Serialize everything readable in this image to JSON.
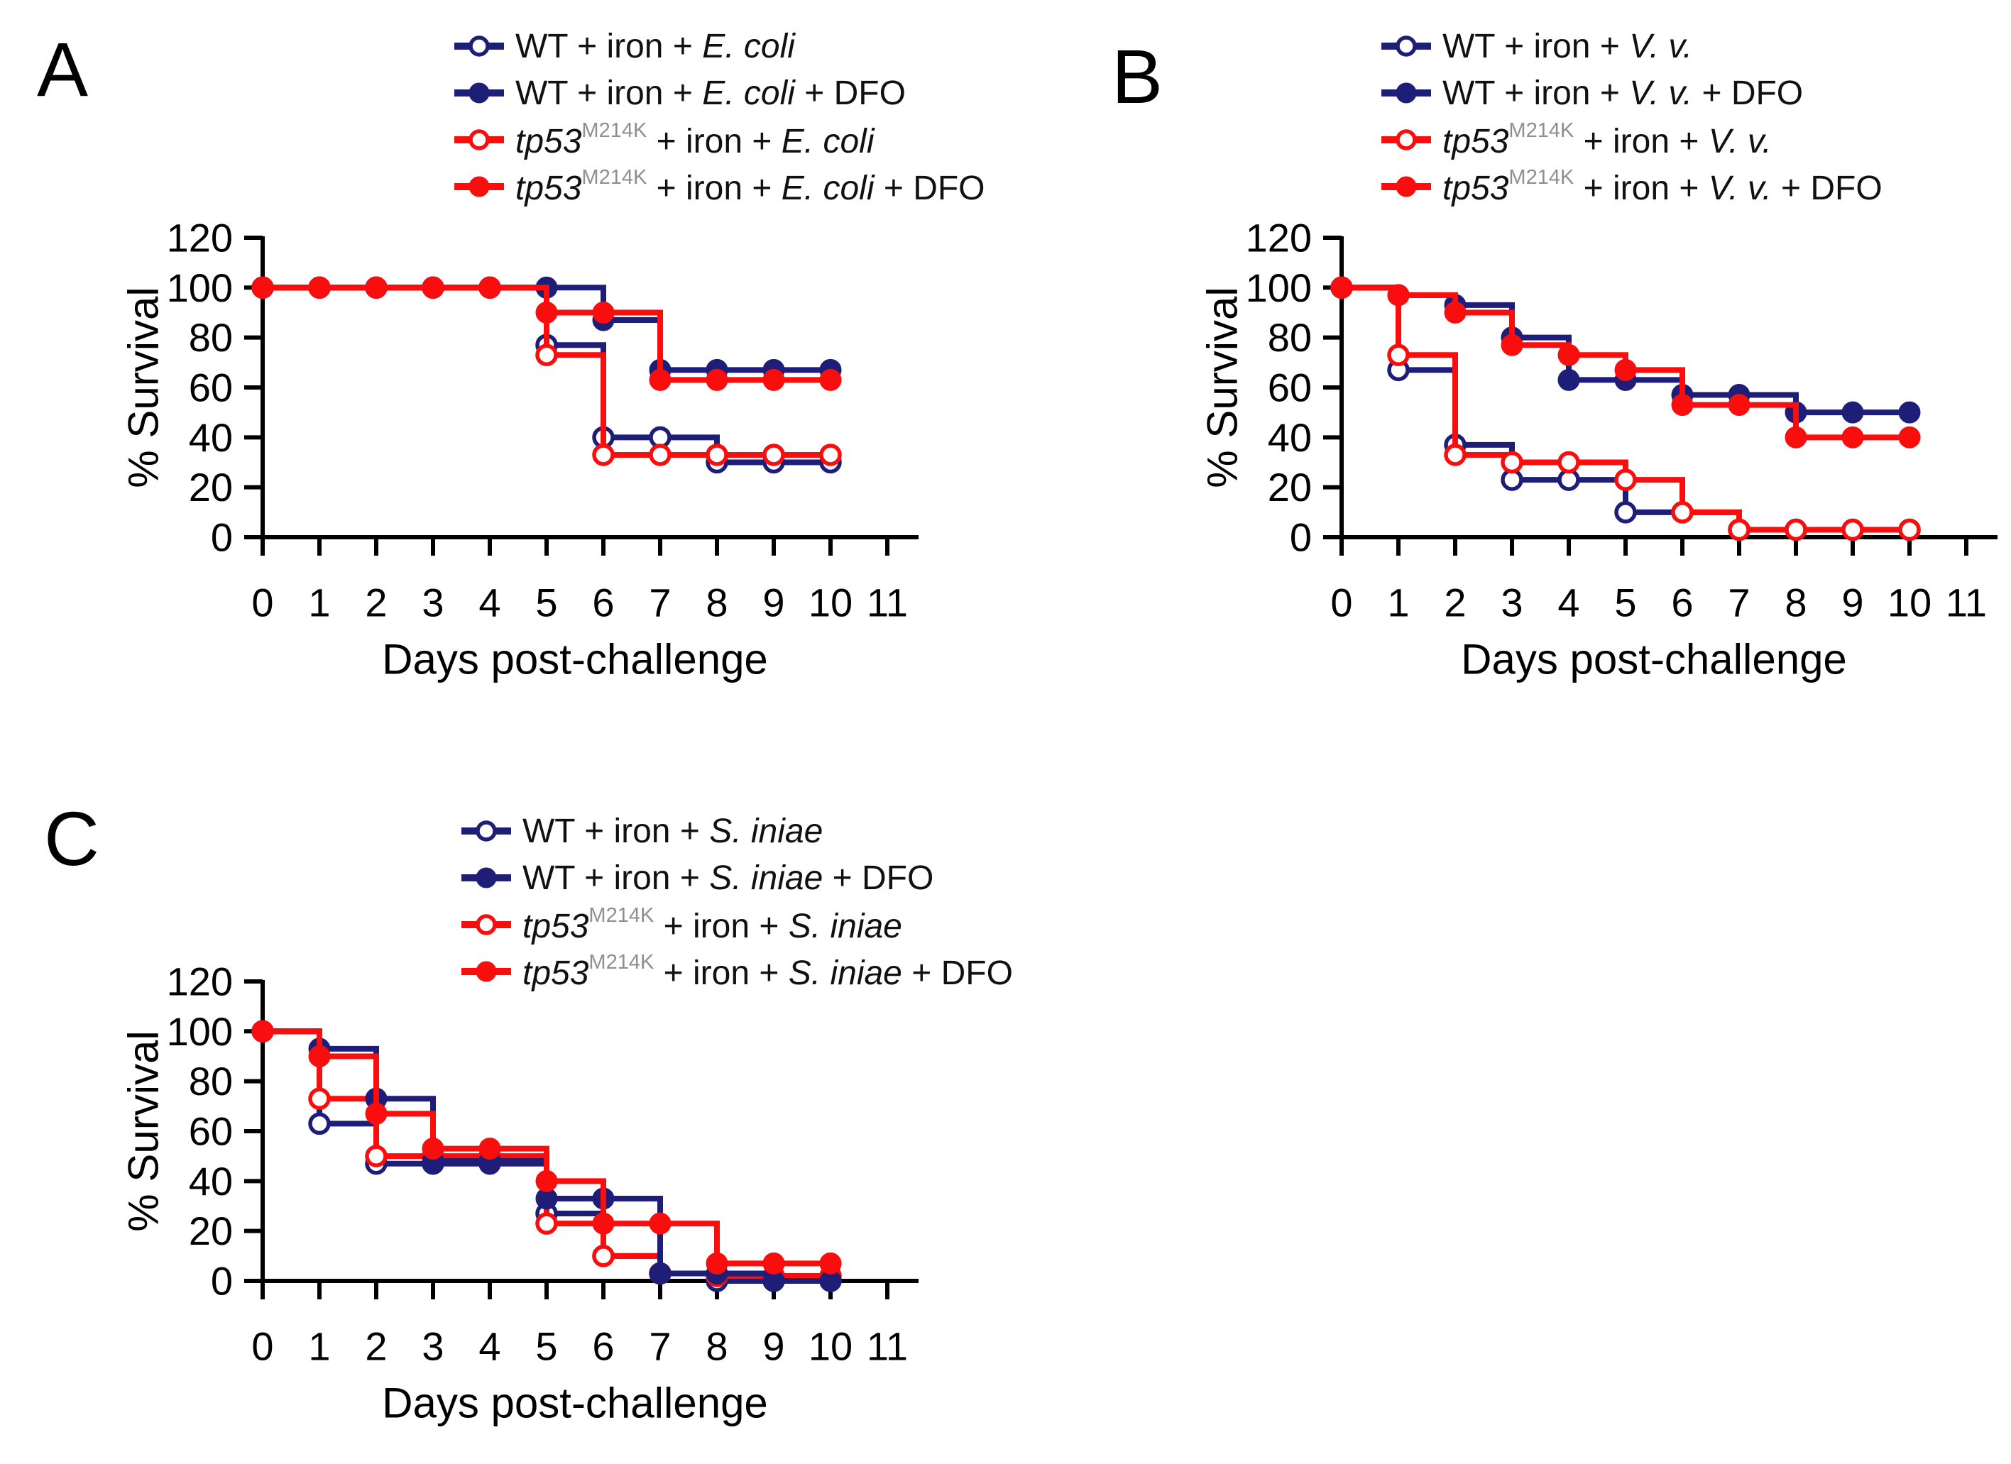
{
  "figure": {
    "background": "#ffffff",
    "panel_labels": [
      "A",
      "B",
      "C"
    ],
    "x_axis_title": "Days post-challenge",
    "y_axis_title": "% Survival"
  },
  "colors": {
    "navy": "#1e1e78",
    "red": "#f90d0d",
    "axis": "#000000",
    "superscript_gray": "#8f8f8f",
    "marker_open_fill": "#ffffff"
  },
  "chart_data": [
    {
      "type": "line",
      "subtype": "kaplan-meier-step",
      "panel_label": "A",
      "pathogen": "E. coli",
      "xlabel": "Days post-challenge",
      "ylabel": "% Survival",
      "xlim": [
        0,
        11.5
      ],
      "ylim": [
        0,
        120
      ],
      "x_ticks": [
        0,
        1,
        2,
        3,
        4,
        5,
        6,
        7,
        8,
        9,
        10,
        11
      ],
      "y_ticks": [
        0,
        20,
        40,
        60,
        80,
        100,
        120
      ],
      "days": [
        0,
        1,
        2,
        3,
        4,
        5,
        6,
        7,
        8,
        9,
        10
      ],
      "series": [
        {
          "name": "WT + iron + E. coli",
          "label_parts": [
            {
              "text": "WT + iron + "
            },
            {
              "text": "E. coli",
              "italic": true
            }
          ],
          "color_key": "navy",
          "marker": "open",
          "values": [
            100,
            100,
            100,
            100,
            100,
            77,
            40,
            40,
            30,
            30,
            30
          ]
        },
        {
          "name": "WT + iron + E. coli + DFO",
          "label_parts": [
            {
              "text": "WT + iron + "
            },
            {
              "text": "E. coli",
              "italic": true
            },
            {
              "text": " + DFO"
            }
          ],
          "color_key": "navy",
          "marker": "filled",
          "values": [
            100,
            100,
            100,
            100,
            100,
            100,
            87,
            67,
            67,
            67,
            67
          ]
        },
        {
          "name": "tp53M214K + iron + E. coli",
          "label_parts": [
            {
              "text": "tp53",
              "italic": true
            },
            {
              "text": "M214K",
              "sup": true
            },
            {
              "text": " + iron + "
            },
            {
              "text": "E. coli",
              "italic": true
            }
          ],
          "color_key": "red",
          "marker": "open",
          "values": [
            100,
            100,
            100,
            100,
            100,
            73,
            33,
            33,
            33,
            33,
            33
          ]
        },
        {
          "name": "tp53M214K + iron + E. coli + DFO",
          "label_parts": [
            {
              "text": "tp53",
              "italic": true
            },
            {
              "text": "M214K",
              "sup": true
            },
            {
              "text": " + iron + "
            },
            {
              "text": "E. coli",
              "italic": true
            },
            {
              "text": " + DFO"
            }
          ],
          "color_key": "red",
          "marker": "filled",
          "values": [
            100,
            100,
            100,
            100,
            100,
            90,
            90,
            63,
            63,
            63,
            63
          ]
        }
      ]
    },
    {
      "type": "line",
      "subtype": "kaplan-meier-step",
      "panel_label": "B",
      "pathogen": "V. v.",
      "xlabel": "Days post-challenge",
      "ylabel": "% Survival",
      "xlim": [
        0,
        11.5
      ],
      "ylim": [
        0,
        120
      ],
      "x_ticks": [
        0,
        1,
        2,
        3,
        4,
        5,
        6,
        7,
        8,
        9,
        10,
        11
      ],
      "y_ticks": [
        0,
        20,
        40,
        60,
        80,
        100,
        120
      ],
      "days": [
        0,
        1,
        2,
        3,
        4,
        5,
        6,
        7,
        8,
        9,
        10
      ],
      "series": [
        {
          "name": "WT + iron + V. v.",
          "label_parts": [
            {
              "text": "WT + iron + "
            },
            {
              "text": "V. v.",
              "italic": true
            }
          ],
          "color_key": "navy",
          "marker": "open",
          "values": [
            100,
            67,
            37,
            23,
            23,
            10,
            10,
            3,
            3,
            3,
            3
          ]
        },
        {
          "name": "WT + iron + V. v. + DFO",
          "label_parts": [
            {
              "text": "WT + iron + "
            },
            {
              "text": "V. v.",
              "italic": true
            },
            {
              "text": " + DFO"
            }
          ],
          "color_key": "navy",
          "marker": "filled",
          "values": [
            100,
            97,
            93,
            80,
            63,
            63,
            57,
            57,
            50,
            50,
            50
          ]
        },
        {
          "name": "tp53M214K + iron + V. v.",
          "label_parts": [
            {
              "text": "tp53",
              "italic": true
            },
            {
              "text": "M214K",
              "sup": true
            },
            {
              "text": " + iron + "
            },
            {
              "text": "V. v.",
              "italic": true
            }
          ],
          "color_key": "red",
          "marker": "open",
          "values": [
            100,
            73,
            33,
            30,
            30,
            23,
            10,
            3,
            3,
            3,
            3
          ]
        },
        {
          "name": "tp53M214K + iron + V. v. + DFO",
          "label_parts": [
            {
              "text": "tp53",
              "italic": true
            },
            {
              "text": "M214K",
              "sup": true
            },
            {
              "text": " + iron + "
            },
            {
              "text": "V. v.",
              "italic": true
            },
            {
              "text": " + DFO"
            }
          ],
          "color_key": "red",
          "marker": "filled",
          "values": [
            100,
            97,
            90,
            77,
            73,
            67,
            53,
            53,
            40,
            40,
            40
          ]
        }
      ]
    },
    {
      "type": "line",
      "subtype": "kaplan-meier-step",
      "panel_label": "C",
      "pathogen": "S. iniae",
      "xlabel": "Days post-challenge",
      "ylabel": "% Survival",
      "xlim": [
        0,
        11.5
      ],
      "ylim": [
        0,
        120
      ],
      "x_ticks": [
        0,
        1,
        2,
        3,
        4,
        5,
        6,
        7,
        8,
        9,
        10,
        11
      ],
      "y_ticks": [
        0,
        20,
        40,
        60,
        80,
        100,
        120
      ],
      "days": [
        0,
        1,
        2,
        3,
        4,
        5,
        6,
        7,
        8,
        9,
        10
      ],
      "series": [
        {
          "name": "WT + iron + S. iniae",
          "label_parts": [
            {
              "text": "WT + iron + "
            },
            {
              "text": "S. iniae",
              "italic": true
            }
          ],
          "color_key": "navy",
          "marker": "open",
          "values": [
            100,
            63,
            47,
            47,
            47,
            27,
            10,
            3,
            0,
            0,
            0
          ]
        },
        {
          "name": "WT + iron + S. iniae + DFO",
          "label_parts": [
            {
              "text": "WT + iron + "
            },
            {
              "text": "S. iniae",
              "italic": true
            },
            {
              "text": " + DFO"
            }
          ],
          "color_key": "navy",
          "marker": "filled",
          "values": [
            100,
            93,
            73,
            48,
            48,
            33,
            33,
            3,
            3,
            0,
            0
          ]
        },
        {
          "name": "tp53M214K + iron + S. iniae",
          "label_parts": [
            {
              "text": "tp53",
              "italic": true
            },
            {
              "text": "M214K",
              "sup": true
            },
            {
              "text": " + iron + "
            },
            {
              "text": "S. iniae",
              "italic": true
            }
          ],
          "color_key": "red",
          "marker": "open",
          "values": [
            100,
            73,
            50,
            50,
            50,
            23,
            10,
            3,
            2,
            2,
            2
          ]
        },
        {
          "name": "tp53M214K + iron + S. iniae + DFO",
          "label_parts": [
            {
              "text": "tp53",
              "italic": true
            },
            {
              "text": "M214K",
              "sup": true
            },
            {
              "text": " + iron + "
            },
            {
              "text": "S. iniae",
              "italic": true
            },
            {
              "text": " + DFO"
            }
          ],
          "color_key": "red",
          "marker": "filled",
          "values": [
            100,
            90,
            67,
            53,
            53,
            40,
            23,
            23,
            7,
            7,
            7
          ]
        }
      ]
    }
  ]
}
